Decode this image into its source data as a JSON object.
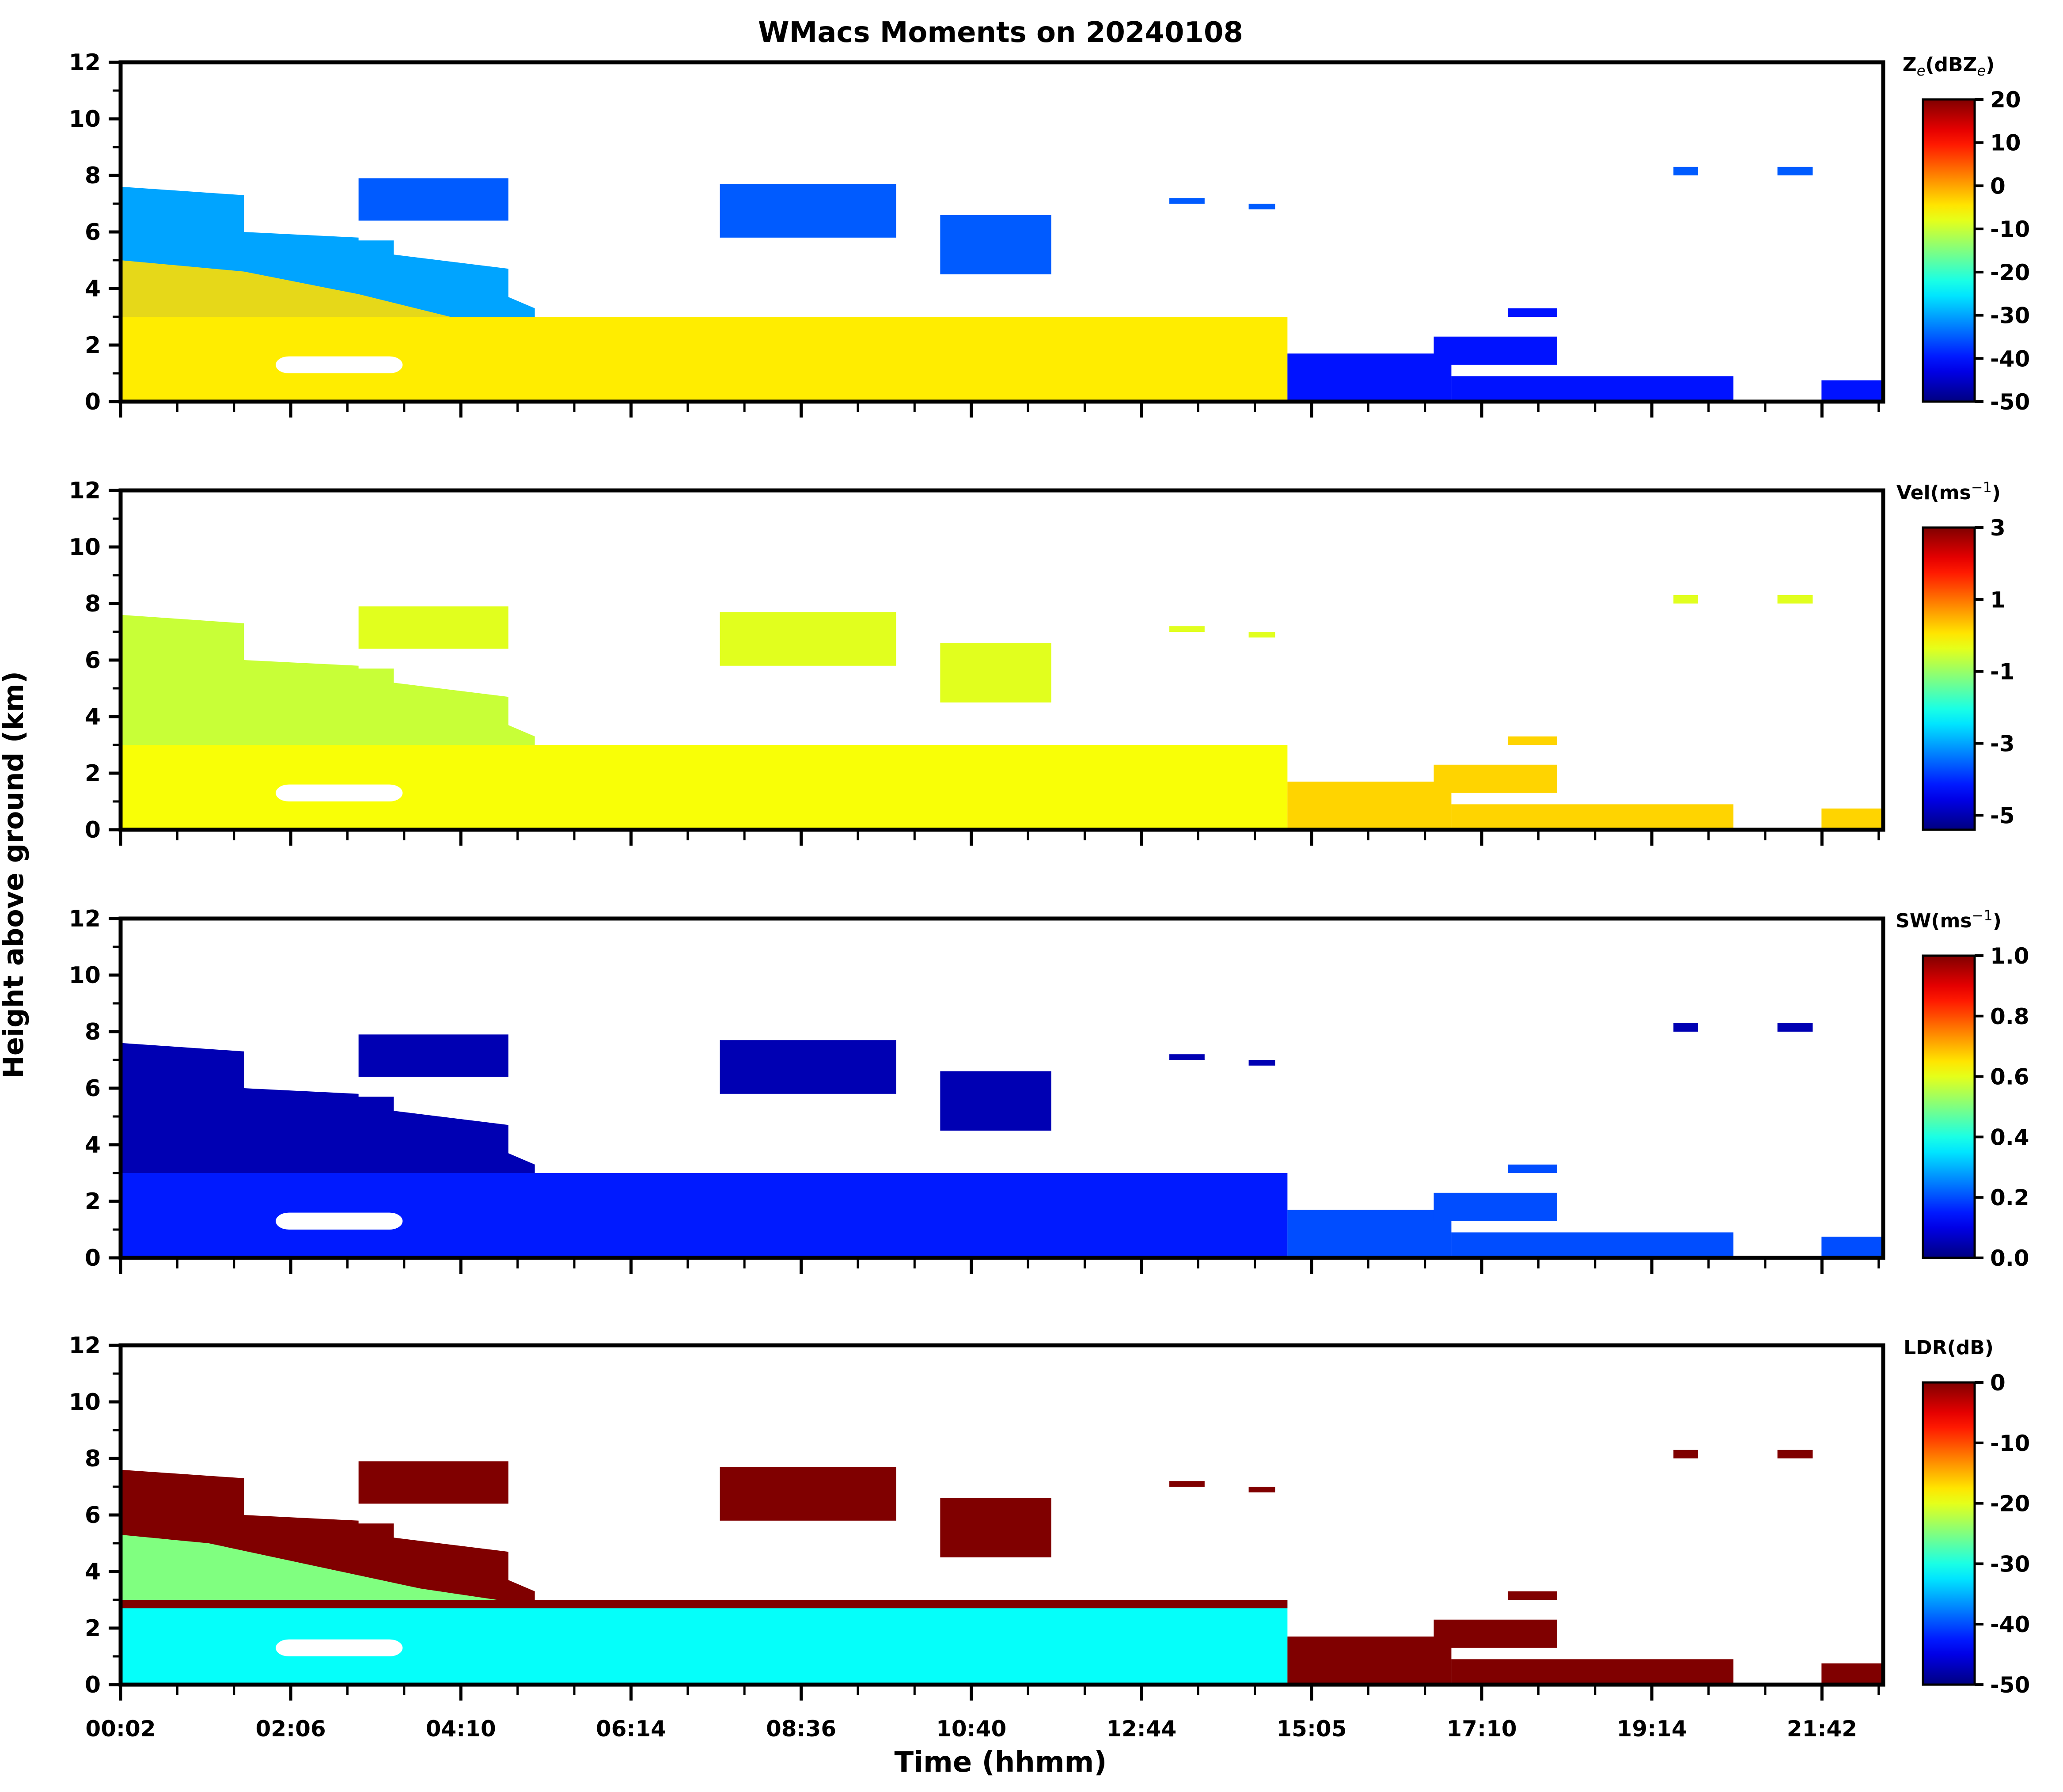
{
  "chart_data": {
    "type": "heatmap",
    "title": "WMacs Moments on 20240108",
    "xlabel": "Time (hhmm)",
    "ylabel": "Height above ground (km)",
    "x_tick_labels": [
      "00:02",
      "02:06",
      "04:10",
      "06:14",
      "08:36",
      "10:40",
      "12:44",
      "15:05",
      "17:10",
      "19:14",
      "21:42"
    ],
    "y_ticks": [
      0,
      2,
      4,
      6,
      8,
      10,
      12
    ],
    "y_tick_labels": [
      "0",
      "2",
      "4",
      "6",
      "8",
      "10",
      "12"
    ],
    "ylim": [
      0,
      12
    ],
    "xlim_fraction": [
      0,
      1
    ],
    "colormap": "jet",
    "panels": [
      {
        "name": "reflectivity",
        "colorbar_label_main": "Z",
        "colorbar_label_sub": "e",
        "colorbar_label_mid": "(dBZ",
        "colorbar_label_sub2": "e",
        "colorbar_label_end": ")",
        "clim": [
          -50,
          20
        ],
        "colorbar_ticks": [
          20,
          10,
          0,
          -10,
          -20,
          -30,
          -40,
          -50
        ],
        "colorbar_tick_labels": [
          "20",
          "10",
          "0",
          "-10",
          "-20",
          "-30",
          "-40",
          "-50"
        ],
        "typical_values": {
          "low_cloud": -5,
          "mid_upper": -30,
          "cirrus": -35,
          "late_low": -40
        }
      },
      {
        "name": "velocity",
        "colorbar_label_main": "Vel(ms",
        "colorbar_label_sup": "−1",
        "colorbar_label_end": ")",
        "clim": [
          -5.4,
          3.0
        ],
        "colorbar_ticks": [
          3,
          1,
          -1,
          -3,
          -5
        ],
        "colorbar_tick_labels": [
          "3",
          "1",
          "-1",
          "-3",
          "-5"
        ],
        "typical_values": {
          "low_cloud": -0.2,
          "mid_upper": -0.6,
          "cirrus": -0.4,
          "late_low": 0.2
        }
      },
      {
        "name": "spectrum-width",
        "colorbar_label_main": "SW(ms",
        "colorbar_label_sup": "−1",
        "colorbar_label_end": ")",
        "clim": [
          0.0,
          1.0
        ],
        "colorbar_ticks": [
          1.0,
          0.8,
          0.6,
          0.4,
          0.2,
          0.0
        ],
        "colorbar_tick_labels": [
          "1.0",
          "0.8",
          "0.6",
          "0.4",
          "0.2",
          "0.0"
        ],
        "typical_values": {
          "low_cloud": 0.15,
          "mid_upper": 0.05,
          "cirrus": 0.05,
          "late_low": 0.2
        }
      },
      {
        "name": "ldr",
        "colorbar_label_main": "LDR(dB)",
        "clim": [
          -50,
          0
        ],
        "colorbar_ticks": [
          0,
          -10,
          -20,
          -30,
          -40,
          -50
        ],
        "colorbar_tick_labels": [
          "0",
          "-10",
          "-20",
          "-30",
          "-40",
          "-50"
        ],
        "typical_values": {
          "low_cloud": -31,
          "mid_upper": 0,
          "cirrus": 0,
          "late_low": 0,
          "lower_left": -25
        }
      }
    ],
    "cloud_regions": [
      {
        "id": "deep-layer",
        "kind": "mid_upper",
        "t": [
          0.0,
          0.07,
          0.07,
          0.135,
          0.135,
          0.155,
          0.155,
          0.22,
          0.22,
          0.235
        ],
        "top": [
          7.6,
          7.3,
          6.0,
          5.8,
          5.7,
          5.7,
          5.2,
          4.7,
          3.7,
          3.3
        ]
      },
      {
        "id": "low-stratocumulus",
        "kind": "low_cloud",
        "t_start": 0.0,
        "t_end": 0.662,
        "top_km": 3.0
      },
      {
        "id": "late-low-layer",
        "kind": "late_low",
        "t_start": 0.662,
        "t_end": 0.755,
        "top_km": 1.7
      },
      {
        "id": "late-boundary",
        "kind": "late_low",
        "t_start": 0.755,
        "t_end": 0.915,
        "top_km": 0.9
      },
      {
        "id": "end-patch",
        "kind": "late_low",
        "t_start": 0.965,
        "t_end": 1.0,
        "top_km": 0.75
      },
      {
        "id": "cirrus-1",
        "kind": "cirrus",
        "t_start": 0.135,
        "t_end": 0.22,
        "bottom_km": 6.4,
        "top_km": 7.9
      },
      {
        "id": "cirrus-2",
        "kind": "cirrus",
        "t_start": 0.34,
        "t_end": 0.44,
        "bottom_km": 5.8,
        "top_km": 7.7
      },
      {
        "id": "cirrus-3",
        "kind": "cirrus",
        "t_start": 0.465,
        "t_end": 0.528,
        "bottom_km": 4.5,
        "top_km": 6.6
      },
      {
        "id": "cirrus-4",
        "kind": "cirrus",
        "t_start": 0.595,
        "t_end": 0.615,
        "bottom_km": 7.0,
        "top_km": 7.2
      },
      {
        "id": "cirrus-5",
        "kind": "cirrus",
        "t_start": 0.64,
        "t_end": 0.655,
        "bottom_km": 6.8,
        "top_km": 7.0
      },
      {
        "id": "cirrus-6",
        "kind": "cirrus",
        "t_start": 0.881,
        "t_end": 0.895,
        "bottom_km": 8.0,
        "top_km": 8.3
      },
      {
        "id": "cirrus-7",
        "kind": "cirrus",
        "t_start": 0.94,
        "t_end": 0.96,
        "bottom_km": 8.0,
        "top_km": 8.3
      },
      {
        "id": "mid-patch-1",
        "kind": "late_low",
        "t_start": 0.787,
        "t_end": 0.815,
        "bottom_km": 3.0,
        "top_km": 3.3
      },
      {
        "id": "mid-patch-2",
        "kind": "late_low",
        "t_start": 0.745,
        "t_end": 0.815,
        "bottom_km": 1.3,
        "top_km": 2.3
      }
    ],
    "gap_region": {
      "t_start": 0.088,
      "t_end": 0.16,
      "bottom_km": 1.0,
      "top_km": 1.6
    }
  }
}
